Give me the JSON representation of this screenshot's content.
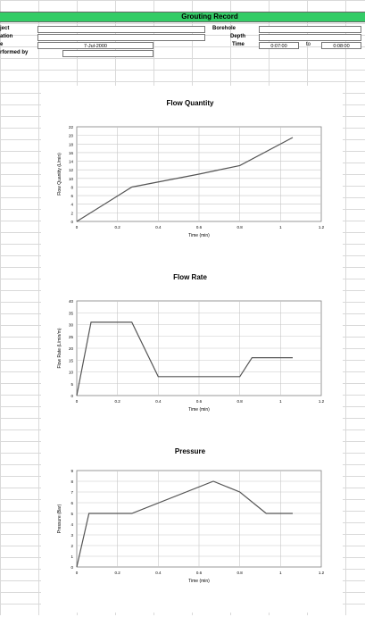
{
  "header": {
    "title": "Grouting Record",
    "left_fields": [
      {
        "label": "ject",
        "value": ""
      },
      {
        "label": "ation",
        "value": ""
      },
      {
        "label": "e",
        "value": "7-Jul-2000"
      },
      {
        "label": "rformed by",
        "value": ""
      }
    ],
    "right_fields": [
      {
        "label": "Borehole",
        "value": ""
      },
      {
        "label": "Depth",
        "value": ""
      },
      {
        "label": "Time",
        "value": "0:07:00",
        "sep": "to",
        "value2": "0:08:00"
      }
    ]
  },
  "chart_data": [
    {
      "type": "line",
      "title": "Flow Quantity",
      "xlabel": "Time (min)",
      "ylabel": "Flow Quantity (L/min)",
      "xlim": [
        0,
        1.2
      ],
      "ylim": [
        0,
        22
      ],
      "xticks": [
        0,
        0.2,
        0.4,
        0.6,
        0.8,
        1,
        1.2
      ],
      "xtick_labels": [
        "0",
        "0.2",
        "0.4",
        "0.6",
        "0.8",
        "1",
        "1.2"
      ],
      "yticks": [
        0,
        2,
        4,
        6,
        8,
        10,
        12,
        14,
        16,
        18,
        20,
        22
      ],
      "grid": true,
      "x": [
        0,
        0.27,
        0.6,
        0.8,
        1.06
      ],
      "y": [
        0,
        8,
        11,
        13,
        19.5
      ]
    },
    {
      "type": "line",
      "title": "Flow Rate",
      "xlabel": "Time (min)",
      "ylabel": "Flow Rate (L/min/m)",
      "xlim": [
        0,
        1.2
      ],
      "ylim": [
        0,
        40
      ],
      "xticks": [
        0,
        0.2,
        0.4,
        0.6,
        0.8,
        1,
        1.2
      ],
      "xtick_labels": [
        "0",
        "0.2",
        "0.4",
        "0.6",
        "0.8",
        "1",
        "1.2"
      ],
      "yticks": [
        0,
        5,
        10,
        15,
        20,
        25,
        30,
        35,
        40
      ],
      "grid": true,
      "x": [
        0,
        0.07,
        0.27,
        0.4,
        0.8,
        0.86,
        1.06
      ],
      "y": [
        0,
        31,
        31,
        8,
        8,
        16,
        16
      ]
    },
    {
      "type": "line",
      "title": "Pressure",
      "xlabel": "Time (min)",
      "ylabel": "Pressure (Bar)",
      "xlim": [
        0,
        1.2
      ],
      "ylim": [
        0,
        9
      ],
      "xticks": [
        0,
        0.2,
        0.4,
        0.6,
        0.8,
        1,
        1.2
      ],
      "xtick_labels": [
        "0",
        "0.2",
        "0.4",
        "0.6",
        "0.8",
        "1",
        "1.2"
      ],
      "yticks": [
        0,
        1,
        2,
        3,
        4,
        5,
        6,
        7,
        8,
        9
      ],
      "grid": true,
      "x": [
        0,
        0.06,
        0.27,
        0.67,
        0.8,
        0.93,
        1.06
      ],
      "y": [
        0,
        5,
        5,
        8,
        7,
        5,
        5
      ]
    }
  ]
}
